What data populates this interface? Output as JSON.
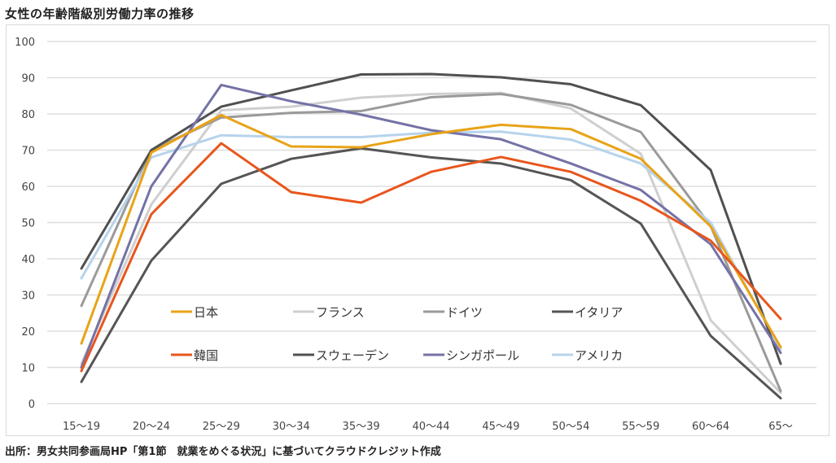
{
  "title": "女性の年齢階級別労働力率の推移",
  "source": "出所：男女共同参画局HP「第1節　就業をめぐる状況」に基づいてクラウドクレジット作成",
  "chart_data": {
    "type": "line",
    "title": "女性の年齢階級別労働力率の推移",
    "xlabel": "",
    "ylabel": "",
    "ylim": [
      0,
      100
    ],
    "yticks": [
      "0",
      "10",
      "20",
      "30",
      "40",
      "50",
      "60",
      "70",
      "80",
      "90",
      "100"
    ],
    "grid": true,
    "legend_position": "inside-bottom-center",
    "categories": [
      "15〜19",
      "20〜24",
      "25〜29",
      "30〜34",
      "35〜39",
      "40〜44",
      "45〜49",
      "50〜54",
      "55〜59",
      "60〜64",
      "65〜"
    ],
    "series": [
      {
        "name": "日本",
        "color": "#e8a317",
        "values": [
          16.6,
          69.3,
          79.7,
          71.0,
          70.8,
          74.4,
          77.0,
          75.8,
          67.6,
          48.9,
          15.6
        ]
      },
      {
        "name": "フランス",
        "color": "#cfcfcf",
        "values": [
          11.0,
          55.0,
          81.0,
          82.0,
          84.5,
          85.5,
          85.8,
          81.5,
          69.0,
          23.0,
          3.0
        ]
      },
      {
        "name": "ドイツ",
        "color": "#9a9a9a",
        "values": [
          27.0,
          70.0,
          79.0,
          80.3,
          80.8,
          84.6,
          85.5,
          82.5,
          75.0,
          49.0,
          3.5
        ]
      },
      {
        "name": "イタリア",
        "color": "#555555",
        "values": [
          6.0,
          39.5,
          60.7,
          67.6,
          70.5,
          68.0,
          66.3,
          61.7,
          49.7,
          18.7,
          1.5
        ]
      },
      {
        "name": "韓国",
        "color": "#e8561c",
        "values": [
          9.0,
          52.3,
          71.9,
          58.4,
          55.5,
          64.0,
          68.1,
          64.0,
          56.0,
          45.0,
          23.4
        ]
      },
      {
        "name": "スウェーデン",
        "color": "#505050",
        "values": [
          37.3,
          70.0,
          82.0,
          86.5,
          90.9,
          91.0,
          90.1,
          88.2,
          82.4,
          64.5,
          11.0
        ]
      },
      {
        "name": "シンガポール",
        "color": "#7472a6",
        "values": [
          10.0,
          60.0,
          88.0,
          83.5,
          79.8,
          75.5,
          73.0,
          66.3,
          59.0,
          44.0,
          14.0
        ]
      },
      {
        "name": "アメリカ",
        "color": "#b7d3ec",
        "values": [
          34.6,
          68.0,
          74.1,
          73.6,
          73.6,
          74.8,
          75.1,
          72.9,
          66.3,
          50.0,
          15.0
        ]
      }
    ]
  }
}
